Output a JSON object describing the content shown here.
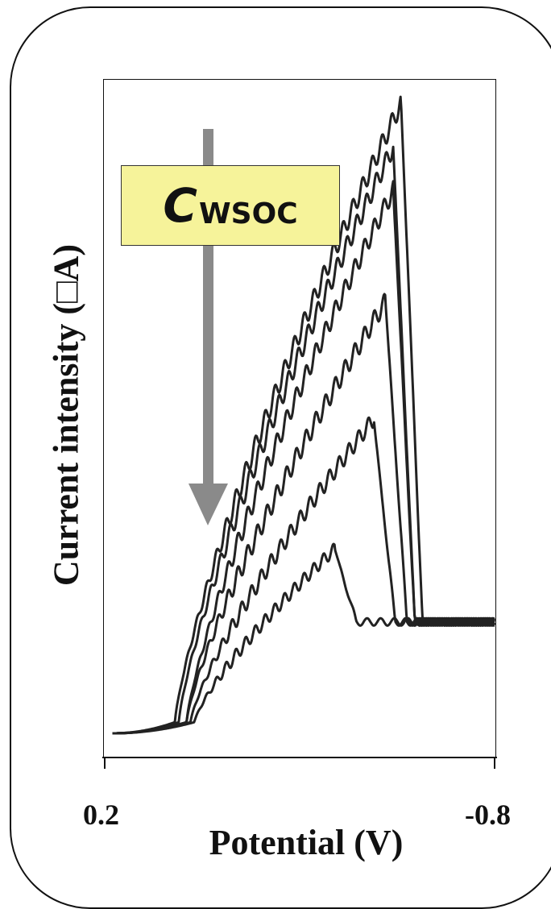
{
  "chart_data": {
    "type": "line",
    "xlabel": "Potential (V)",
    "ylabel": "Current intensity (□A)",
    "xlim": [
      0.2,
      -0.8
    ],
    "x_ticks": [
      "0.2",
      "-0.8"
    ],
    "grid": false,
    "annotation": {
      "text": "C",
      "subscript": "WSOC",
      "arrow_direction": "down",
      "arrow_color": "#8a8a8a",
      "box_color": "#f6f39a"
    },
    "series": [
      {
        "peak_potential": -0.56,
        "peak_value": 1.0,
        "onset_potential": 0.02,
        "wave_period": 0.025,
        "wave_amplitude": 0.015
      },
      {
        "peak_potential": -0.54,
        "peak_value": 0.93,
        "onset_potential": 0.01,
        "wave_period": 0.025,
        "wave_amplitude": 0.015
      },
      {
        "peak_potential": -0.54,
        "peak_value": 0.86,
        "onset_potential": -0.01,
        "wave_period": 0.025,
        "wave_amplitude": 0.015
      },
      {
        "peak_potential": -0.52,
        "peak_value": 0.68,
        "onset_potential": -0.01,
        "wave_period": 0.025,
        "wave_amplitude": 0.015
      },
      {
        "peak_potential": -0.49,
        "peak_value": 0.49,
        "onset_potential": -0.02,
        "wave_period": 0.025,
        "wave_amplitude": 0.013
      },
      {
        "peak_potential": -0.39,
        "peak_value": 0.28,
        "onset_potential": -0.03,
        "wave_period": 0.025,
        "wave_amplitude": 0.01
      }
    ],
    "baseline_value": 0.0,
    "tail_value": 0.18,
    "line_color": "#222222"
  }
}
